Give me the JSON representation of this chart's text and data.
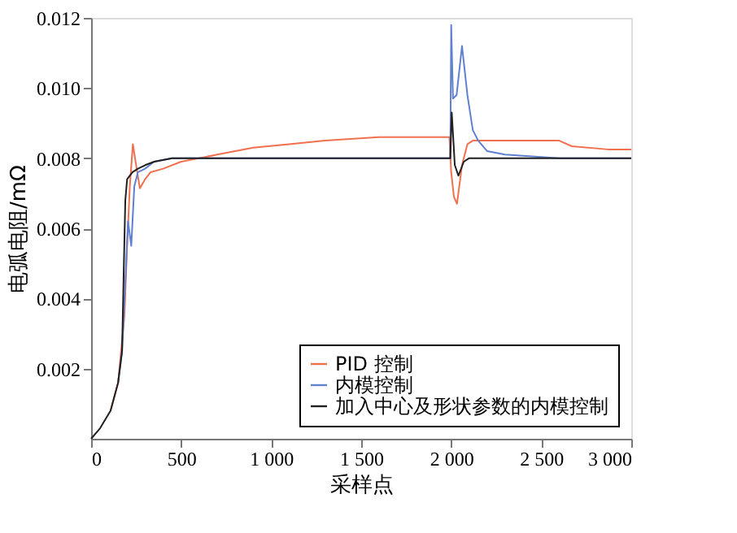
{
  "chart_data": {
    "type": "line",
    "xlabel": "采样点",
    "ylabel": "电弧电阻/mΩ",
    "xlim": [
      0,
      3000
    ],
    "ylim": [
      0,
      0.012
    ],
    "xticks": [
      0,
      500,
      {
        "value": 1000,
        "label": "1 000"
      },
      {
        "value": 1500,
        "label": "1 500"
      },
      {
        "value": 2000,
        "label": "2 000"
      },
      {
        "value": 2500,
        "label": "2 500"
      },
      {
        "value": 3000,
        "label": "3 000"
      }
    ],
    "yticks": [
      0.002,
      0.004,
      0.006,
      0.008,
      {
        "value": 0.01,
        "label": "0.010"
      },
      0.012
    ],
    "grid": false,
    "legend": "bottom right",
    "marker": "none",
    "line_style": "solid",
    "series": [
      {
        "name": "PID 控制",
        "color": "#f0704f",
        "x": [
          108,
          150,
          185,
          200,
          215,
          232,
          250,
          271,
          300,
          330,
          400,
          500,
          700,
          900,
          1100,
          1300,
          1600,
          1990,
          2000,
          2015,
          2032,
          2060,
          2090,
          2120,
          2300,
          2600,
          2670,
          2870,
          3000
        ],
        "values": [
          0.0008,
          0.0016,
          0.0035,
          0.0055,
          0.0072,
          0.0084,
          0.0078,
          0.00714,
          0.0074,
          0.0076,
          0.0077,
          0.0079,
          0.0081,
          0.0083,
          0.0084,
          0.0085,
          0.0086,
          0.0086,
          0.0076,
          0.0069,
          0.0067,
          0.0078,
          0.0084,
          0.0085,
          0.0085,
          0.0085,
          0.00834,
          0.00825,
          0.00825
        ]
      },
      {
        "name": "内模控制",
        "color": "#6080d0",
        "x": [
          150,
          172,
          190,
          205,
          223,
          240,
          260,
          300,
          350,
          450,
          1000,
          1995,
          2000,
          2010,
          2030,
          2060,
          2090,
          2120,
          2150,
          2200,
          2300,
          2600,
          3000
        ],
        "values": [
          0.0016,
          0.0025,
          0.0045,
          0.0062,
          0.0055,
          0.0072,
          0.0076,
          0.0077,
          0.0079,
          0.008,
          0.008,
          0.008,
          0.0118,
          0.0097,
          0.0098,
          0.0112,
          0.0098,
          0.0088,
          0.0085,
          0.0082,
          0.0081,
          0.008,
          0.008
        ]
      },
      {
        "name": "加入中心及形状参数的内模控制",
        "color": "#202020",
        "x": [
          0,
          50,
          108,
          150,
          172,
          180,
          190,
          200,
          230,
          260,
          300,
          350,
          450,
          1000,
          1995,
          2003,
          2020,
          2040,
          2070,
          2100,
          2500,
          3000
        ],
        "values": [
          0,
          0.0003,
          0.0008,
          0.0016,
          0.0025,
          0.0045,
          0.0068,
          0.0074,
          0.0076,
          0.0077,
          0.0078,
          0.0079,
          0.008,
          0.008,
          0.008,
          0.0093,
          0.0078,
          0.0075,
          0.0079,
          0.008,
          0.008,
          0.008
        ]
      }
    ]
  }
}
